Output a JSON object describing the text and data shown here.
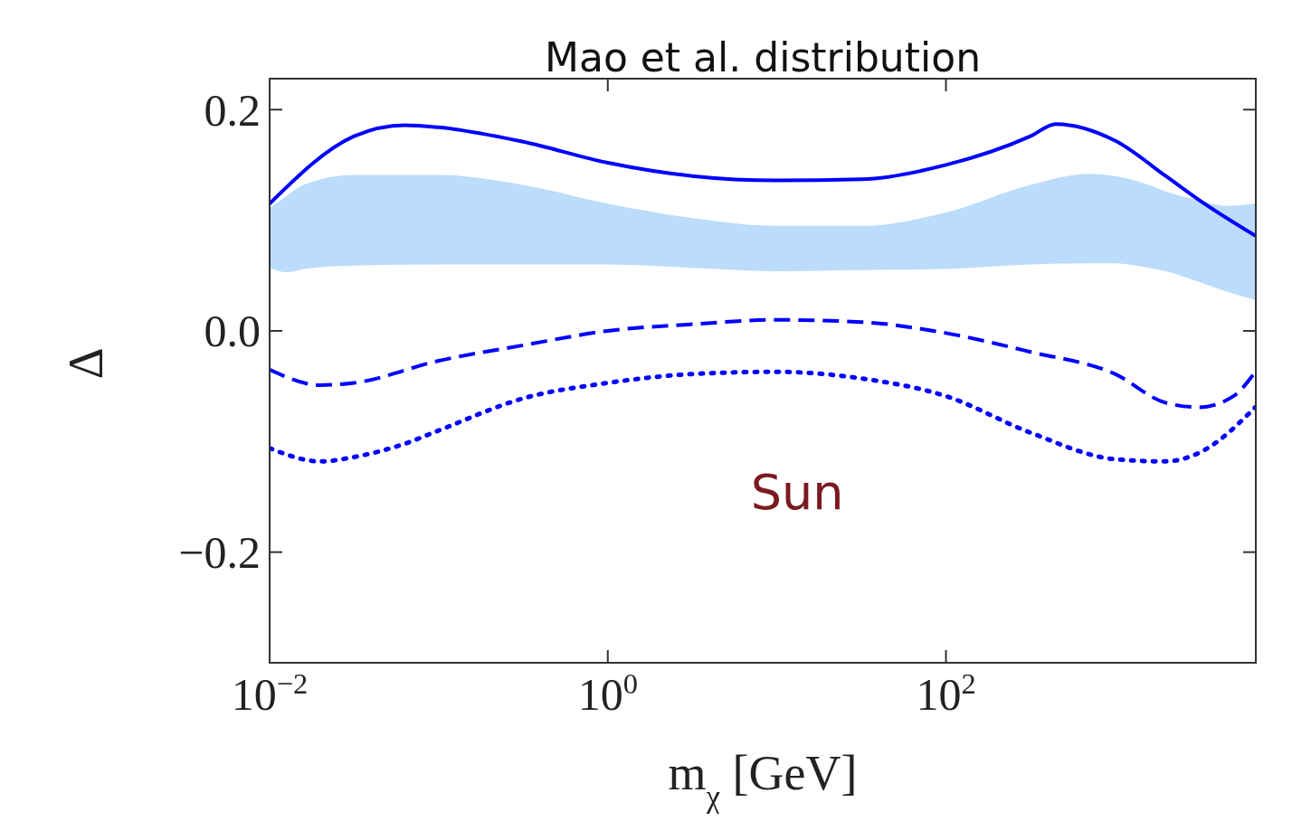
{
  "chart_data": {
    "type": "line",
    "title": "Mao et al. distribution",
    "xlabel": "m$_{χ}$ [GeV]",
    "ylabel": "Δ",
    "log": "x",
    "xlim": [
      0.01,
      6800
    ],
    "ylim": [
      -0.3,
      0.228
    ],
    "xticks": [
      {
        "value": 0.01,
        "label": "10$^{−2}$"
      },
      {
        "value": 1,
        "label": "10$^{0}$"
      },
      {
        "value": 100,
        "label": "10$^{2}$"
      }
    ],
    "yticks": [
      {
        "value": -0.2,
        "label": "−0.2"
      },
      {
        "value": 0,
        "label": "0.0"
      },
      0.2
    ],
    "annotations": [
      "Sun"
    ],
    "series": [
      {
        "type": "area",
        "color": "#bbdcfb",
        "x": [
          0.01,
          0.0126,
          0.0158,
          0.0316,
          0.1,
          0.316,
          1,
          3.16,
          10,
          31.6,
          100,
          316,
          708,
          1000,
          1585,
          1995,
          3162,
          4467,
          6761
        ],
        "lower": [
          0.057,
          0.053,
          0.056,
          0.059,
          0.06,
          0.06,
          0.06,
          0.057,
          0.054,
          0.055,
          0.056,
          0.06,
          0.061,
          0.061,
          0.057,
          0.054,
          0.044,
          0.036,
          0.028
        ],
        "values": [
          null,
          null,
          null,
          null,
          null,
          null,
          null,
          null,
          null,
          null,
          null,
          null,
          null,
          null,
          null,
          null,
          null,
          null,
          null
        ],
        "upper": [
          0.111,
          0.122,
          0.132,
          0.141,
          0.141,
          0.132,
          0.115,
          0.102,
          0.095,
          0.095,
          0.107,
          0.132,
          0.142,
          0.14,
          0.132,
          0.126,
          0.118,
          0.113,
          0.115
        ]
      },
      {
        "color": "#0000ff",
        "line_style": "solid",
        "x": [
          0.01,
          0.0316,
          0.063,
          0.1,
          0.316,
          1,
          3.16,
          10,
          31.6,
          100,
          316,
          447,
          1000,
          1995,
          3162,
          6761
        ],
        "values": [
          0.115,
          0.176,
          0.186,
          0.184,
          0.171,
          0.152,
          0.14,
          0.136,
          0.137,
          0.15,
          0.176,
          0.187,
          0.172,
          0.14,
          0.118,
          0.086
        ]
      },
      {
        "color": "#0000ff",
        "line_style": "dashed",
        "x": [
          0.01,
          0.02,
          0.0316,
          0.1,
          0.316,
          1,
          3.16,
          10,
          31.6,
          100,
          316,
          1000,
          1995,
          3162,
          5012,
          6761
        ],
        "values": [
          -0.035,
          -0.049,
          -0.047,
          -0.027,
          -0.013,
          0,
          0.006,
          0.01,
          0.008,
          -0.002,
          -0.019,
          -0.039,
          -0.065,
          -0.069,
          -0.059,
          -0.037
        ]
      },
      {
        "color": "#0000ff",
        "line_style": "dotted",
        "x": [
          0.01,
          0.02,
          0.0316,
          0.063,
          0.1,
          0.316,
          1,
          3.16,
          10,
          31.6,
          100,
          316,
          1000,
          1995,
          3162,
          6761
        ],
        "values": [
          -0.106,
          -0.118,
          -0.114,
          -0.102,
          -0.09,
          -0.061,
          -0.047,
          -0.039,
          -0.037,
          -0.043,
          -0.059,
          -0.092,
          -0.116,
          -0.118,
          -0.11,
          -0.069
        ]
      }
    ]
  }
}
